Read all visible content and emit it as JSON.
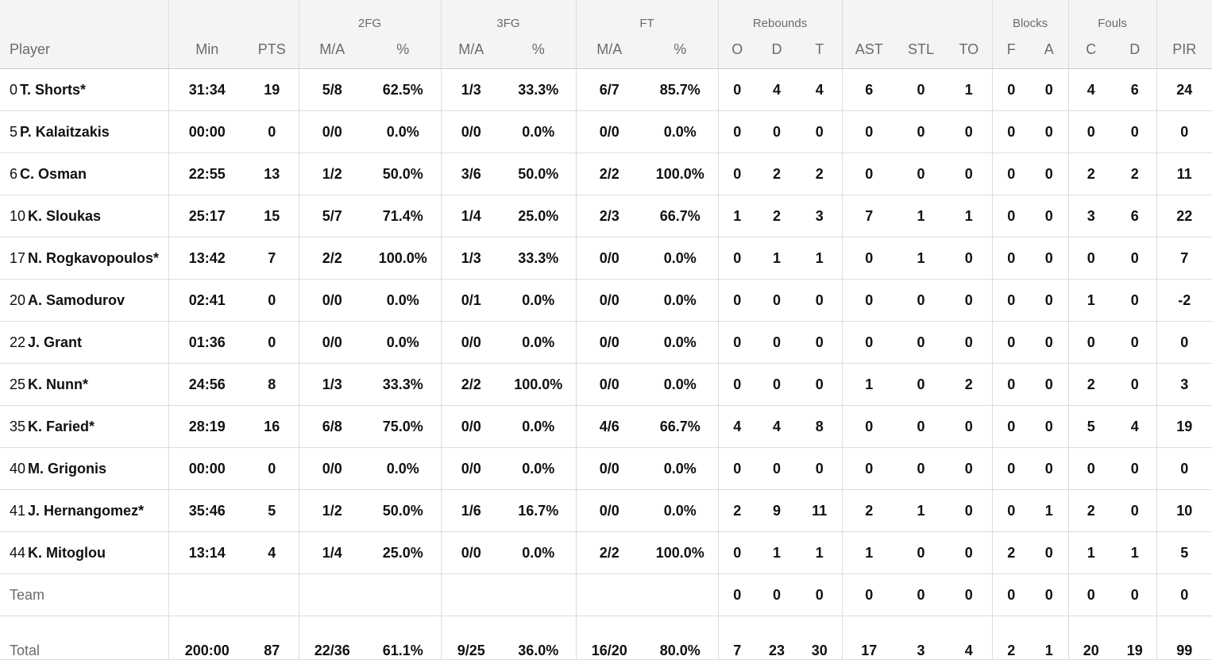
{
  "groups": {
    "twofg": "2FG",
    "threefg": "3FG",
    "ft": "FT",
    "reb": "Rebounds",
    "blocks": "Blocks",
    "fouls": "Fouls"
  },
  "cols": {
    "player": "Player",
    "min": "Min",
    "pts": "PTS",
    "ma": "M/A",
    "pct": "%",
    "o": "O",
    "d": "D",
    "t": "T",
    "ast": "AST",
    "stl": "STL",
    "to": "TO",
    "f": "F",
    "a": "A",
    "c": "C",
    "fd": "D",
    "pir": "PIR"
  },
  "rows": [
    {
      "num": "0",
      "name": "T. Shorts*",
      "min": "31:34",
      "pts": "19",
      "fg2": "5/8",
      "fg2p": "62.5%",
      "fg3": "1/3",
      "fg3p": "33.3%",
      "ft": "6/7",
      "ftp": "85.7%",
      "o": "0",
      "d": "4",
      "t": "4",
      "ast": "6",
      "stl": "0",
      "to": "1",
      "bf": "0",
      "ba": "0",
      "fc": "4",
      "fd": "6",
      "pir": "24"
    },
    {
      "num": "5",
      "name": "P. Kalaitzakis",
      "min": "00:00",
      "pts": "0",
      "fg2": "0/0",
      "fg2p": "0.0%",
      "fg3": "0/0",
      "fg3p": "0.0%",
      "ft": "0/0",
      "ftp": "0.0%",
      "o": "0",
      "d": "0",
      "t": "0",
      "ast": "0",
      "stl": "0",
      "to": "0",
      "bf": "0",
      "ba": "0",
      "fc": "0",
      "fd": "0",
      "pir": "0"
    },
    {
      "num": "6",
      "name": "C. Osman",
      "min": "22:55",
      "pts": "13",
      "fg2": "1/2",
      "fg2p": "50.0%",
      "fg3": "3/6",
      "fg3p": "50.0%",
      "ft": "2/2",
      "ftp": "100.0%",
      "o": "0",
      "d": "2",
      "t": "2",
      "ast": "0",
      "stl": "0",
      "to": "0",
      "bf": "0",
      "ba": "0",
      "fc": "2",
      "fd": "2",
      "pir": "11"
    },
    {
      "num": "10",
      "name": "K. Sloukas",
      "min": "25:17",
      "pts": "15",
      "fg2": "5/7",
      "fg2p": "71.4%",
      "fg3": "1/4",
      "fg3p": "25.0%",
      "ft": "2/3",
      "ftp": "66.7%",
      "o": "1",
      "d": "2",
      "t": "3",
      "ast": "7",
      "stl": "1",
      "to": "1",
      "bf": "0",
      "ba": "0",
      "fc": "3",
      "fd": "6",
      "pir": "22"
    },
    {
      "num": "17",
      "name": "N. Rogkavopoulos*",
      "min": "13:42",
      "pts": "7",
      "fg2": "2/2",
      "fg2p": "100.0%",
      "fg3": "1/3",
      "fg3p": "33.3%",
      "ft": "0/0",
      "ftp": "0.0%",
      "o": "0",
      "d": "1",
      "t": "1",
      "ast": "0",
      "stl": "1",
      "to": "0",
      "bf": "0",
      "ba": "0",
      "fc": "0",
      "fd": "0",
      "pir": "7"
    },
    {
      "num": "20",
      "name": "A. Samodurov",
      "min": "02:41",
      "pts": "0",
      "fg2": "0/0",
      "fg2p": "0.0%",
      "fg3": "0/1",
      "fg3p": "0.0%",
      "ft": "0/0",
      "ftp": "0.0%",
      "o": "0",
      "d": "0",
      "t": "0",
      "ast": "0",
      "stl": "0",
      "to": "0",
      "bf": "0",
      "ba": "0",
      "fc": "1",
      "fd": "0",
      "pir": "-2"
    },
    {
      "num": "22",
      "name": "J. Grant",
      "min": "01:36",
      "pts": "0",
      "fg2": "0/0",
      "fg2p": "0.0%",
      "fg3": "0/0",
      "fg3p": "0.0%",
      "ft": "0/0",
      "ftp": "0.0%",
      "o": "0",
      "d": "0",
      "t": "0",
      "ast": "0",
      "stl": "0",
      "to": "0",
      "bf": "0",
      "ba": "0",
      "fc": "0",
      "fd": "0",
      "pir": "0"
    },
    {
      "num": "25",
      "name": "K. Nunn*",
      "min": "24:56",
      "pts": "8",
      "fg2": "1/3",
      "fg2p": "33.3%",
      "fg3": "2/2",
      "fg3p": "100.0%",
      "ft": "0/0",
      "ftp": "0.0%",
      "o": "0",
      "d": "0",
      "t": "0",
      "ast": "1",
      "stl": "0",
      "to": "2",
      "bf": "0",
      "ba": "0",
      "fc": "2",
      "fd": "0",
      "pir": "3"
    },
    {
      "num": "35",
      "name": "K. Faried*",
      "min": "28:19",
      "pts": "16",
      "fg2": "6/8",
      "fg2p": "75.0%",
      "fg3": "0/0",
      "fg3p": "0.0%",
      "ft": "4/6",
      "ftp": "66.7%",
      "o": "4",
      "d": "4",
      "t": "8",
      "ast": "0",
      "stl": "0",
      "to": "0",
      "bf": "0",
      "ba": "0",
      "fc": "5",
      "fd": "4",
      "pir": "19"
    },
    {
      "num": "40",
      "name": "M. Grigonis",
      "min": "00:00",
      "pts": "0",
      "fg2": "0/0",
      "fg2p": "0.0%",
      "fg3": "0/0",
      "fg3p": "0.0%",
      "ft": "0/0",
      "ftp": "0.0%",
      "o": "0",
      "d": "0",
      "t": "0",
      "ast": "0",
      "stl": "0",
      "to": "0",
      "bf": "0",
      "ba": "0",
      "fc": "0",
      "fd": "0",
      "pir": "0"
    },
    {
      "num": "41",
      "name": "J. Hernangomez*",
      "min": "35:46",
      "pts": "5",
      "fg2": "1/2",
      "fg2p": "50.0%",
      "fg3": "1/6",
      "fg3p": "16.7%",
      "ft": "0/0",
      "ftp": "0.0%",
      "o": "2",
      "d": "9",
      "t": "11",
      "ast": "2",
      "stl": "1",
      "to": "0",
      "bf": "0",
      "ba": "1",
      "fc": "2",
      "fd": "0",
      "pir": "10"
    },
    {
      "num": "44",
      "name": "K. Mitoglou",
      "min": "13:14",
      "pts": "4",
      "fg2": "1/4",
      "fg2p": "25.0%",
      "fg3": "0/0",
      "fg3p": "0.0%",
      "ft": "2/2",
      "ftp": "100.0%",
      "o": "0",
      "d": "1",
      "t": "1",
      "ast": "1",
      "stl": "0",
      "to": "0",
      "bf": "2",
      "ba": "0",
      "fc": "1",
      "fd": "1",
      "pir": "5"
    }
  ],
  "team": {
    "label": "Team",
    "o": "0",
    "d": "0",
    "t": "0",
    "ast": "0",
    "stl": "0",
    "to": "0",
    "bf": "0",
    "ba": "0",
    "fc": "0",
    "fd": "0",
    "pir": "0"
  },
  "total": {
    "label": "Total",
    "min": "200:00",
    "pts": "87",
    "fg2": "22/36",
    "fg2p": "61.1%",
    "fg3": "9/25",
    "fg3p": "36.0%",
    "ft": "16/20",
    "ftp": "80.0%",
    "o": "7",
    "d": "23",
    "t": "30",
    "ast": "17",
    "stl": "3",
    "to": "4",
    "bf": "2",
    "ba": "1",
    "fc": "20",
    "fd": "19",
    "pir": "99"
  }
}
